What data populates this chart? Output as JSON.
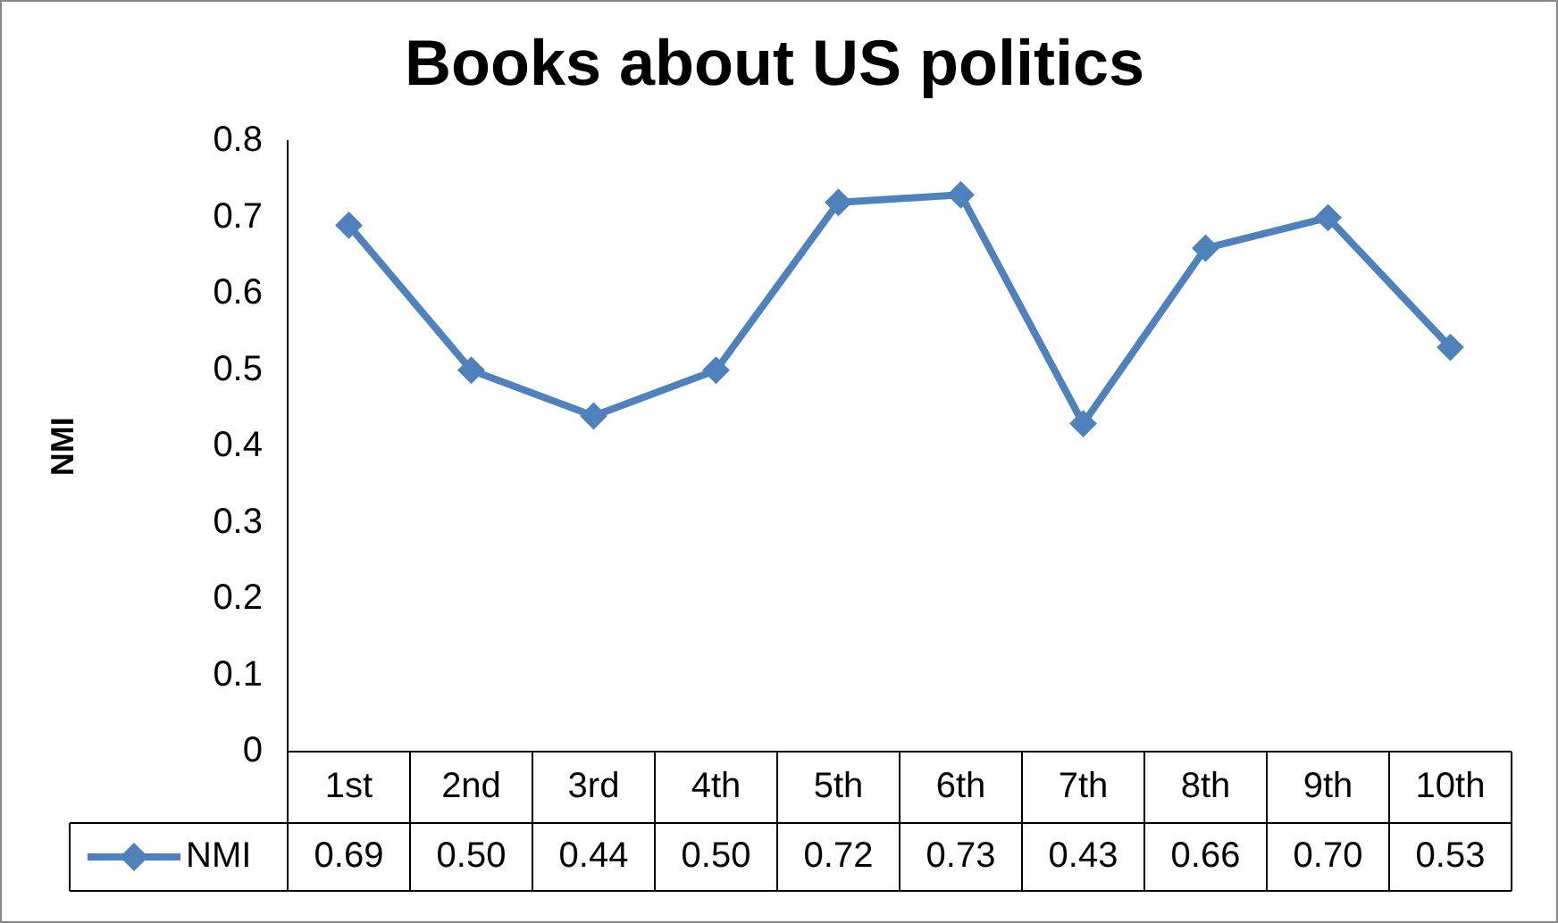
{
  "chart_data": {
    "type": "line",
    "title": "Books about US politics",
    "ylabel": "NMI",
    "categories": [
      "1st",
      "2nd",
      "3rd",
      "4th",
      "5th",
      "6th",
      "7th",
      "8th",
      "9th",
      "10th"
    ],
    "series": [
      {
        "name": "NMI",
        "color": "#4f81bd",
        "values": [
          0.69,
          0.5,
          0.44,
          0.5,
          0.72,
          0.73,
          0.43,
          0.66,
          0.7,
          0.53
        ],
        "value_labels": [
          "0.69",
          "0.50",
          "0.44",
          "0.50",
          "0.72",
          "0.73",
          "0.43",
          "0.66",
          "0.70",
          "0.53"
        ]
      }
    ],
    "ylim": [
      0,
      0.8
    ],
    "yticks": [
      0,
      0.1,
      0.2,
      0.3,
      0.4,
      0.5,
      0.6,
      0.7,
      0.8
    ],
    "grid": false,
    "legend": "bottom",
    "marker": "diamond",
    "line_style": "solid"
  }
}
